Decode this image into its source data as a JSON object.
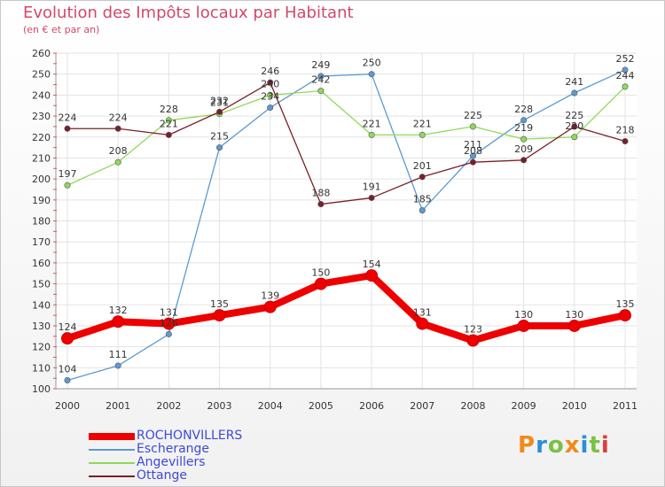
{
  "header": {
    "title": "Evolution des Impôts locaux par Habitant",
    "subtitle": "(en € et par an)"
  },
  "logo": {
    "text": "Proxiti",
    "colors": [
      "#f08a1c",
      "#2c8fd6",
      "#7ac143",
      "#f08a1c",
      "#2c8fd6",
      "#7ac143",
      "#e23b3b"
    ]
  },
  "chart_data": {
    "type": "line",
    "title": "Evolution des Impôts locaux par Habitant",
    "subtitle": "(en € et par an)",
    "xlabel": "",
    "ylabel": "",
    "categories": [
      "2000",
      "2001",
      "2002",
      "2003",
      "2004",
      "2005",
      "2006",
      "2007",
      "2008",
      "2009",
      "2010",
      "2011"
    ],
    "ylim": [
      100,
      260
    ],
    "yticks": [
      100,
      110,
      120,
      130,
      140,
      150,
      160,
      170,
      180,
      190,
      200,
      210,
      220,
      230,
      240,
      250,
      260
    ],
    "grid": true,
    "legend_position": "bottom-left",
    "series": [
      {
        "name": "ROCHONVILLERS",
        "color": "#ee0000",
        "values": [
          124,
          132,
          131,
          135,
          139,
          150,
          154,
          131,
          123,
          130,
          130,
          135
        ]
      },
      {
        "name": "Escherange",
        "color": "#5b9bd0",
        "values": [
          104,
          111,
          126,
          215,
          234,
          249,
          250,
          185,
          211,
          228,
          241,
          252
        ]
      },
      {
        "name": "Angevillers",
        "color": "#8fda5a",
        "values": [
          197,
          208,
          228,
          231,
          240,
          242,
          221,
          221,
          225,
          219,
          220,
          244
        ]
      },
      {
        "name": "Ottange",
        "color": "#7a1f2a",
        "values": [
          224,
          224,
          221,
          232,
          246,
          188,
          191,
          201,
          208,
          209,
          225,
          218
        ]
      }
    ]
  }
}
